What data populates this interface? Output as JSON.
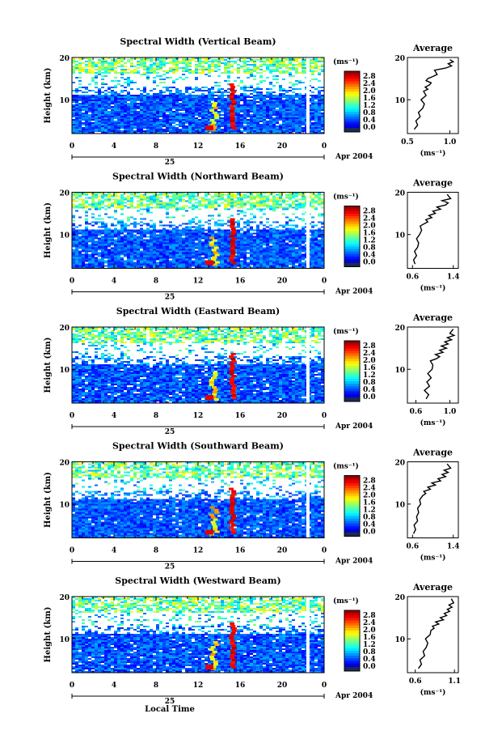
{
  "chart_data": [
    {
      "type": "heatmap",
      "title": "Spectral Width (Vertical Beam)",
      "ylabel": "Height (km)",
      "xticks": [
        "0",
        "4",
        "8",
        "12",
        "16",
        "20",
        "0"
      ],
      "yticks": [
        "10",
        "20"
      ],
      "date_label": "25",
      "month_label": "Apr 2004",
      "xlim": [
        0,
        24
      ],
      "ylim": [
        2,
        20
      ],
      "colorbar": {
        "unit": "(ms⁻¹)",
        "ticks": [
          "2.8",
          "2.4",
          "2.0",
          "1.6",
          "1.2",
          "0.8",
          "0.4",
          "0.0"
        ]
      },
      "profile": {
        "title": "Average",
        "xlabel": "(ms⁻¹)",
        "xticks": [
          "0.5",
          "1.0"
        ],
        "yticks": [
          "10",
          "20"
        ],
        "xlim": [
          0.5,
          1.1
        ],
        "x": [
          0.58,
          0.62,
          0.6,
          0.65,
          0.63,
          0.68,
          0.7,
          0.66,
          0.72,
          0.69,
          0.74,
          0.71,
          0.76,
          0.78,
          0.72,
          0.74,
          0.8,
          0.85,
          0.82,
          0.95,
          1.02,
          0.98,
          1.04,
          1.0
        ],
        "y": [
          3,
          4,
          5,
          6,
          7,
          8,
          9,
          10,
          11,
          12,
          12.5,
          13,
          13.5,
          14,
          14.5,
          15,
          15.5,
          16,
          17,
          17.5,
          18,
          18.5,
          19,
          19.5
        ]
      }
    },
    {
      "type": "heatmap",
      "title": "Spectral Width (Northward Beam)",
      "ylabel": "Height (km)",
      "xticks": [
        "0",
        "4",
        "8",
        "12",
        "16",
        "20",
        "0"
      ],
      "yticks": [
        "10",
        "20"
      ],
      "date_label": "25",
      "month_label": "Apr 2004",
      "xlim": [
        0,
        24
      ],
      "ylim": [
        2,
        20
      ],
      "colorbar": {
        "unit": "(ms⁻¹)",
        "ticks": [
          "2.8",
          "2.4",
          "2.0",
          "1.6",
          "1.2",
          "0.8",
          "0.4",
          "0.0"
        ]
      },
      "profile": {
        "title": "Average",
        "xlabel": "(ms⁻¹)",
        "xticks": [
          "0.6",
          "1.4"
        ],
        "yticks": [
          "10",
          "20"
        ],
        "xlim": [
          0.5,
          1.5
        ],
        "x": [
          0.65,
          0.62,
          0.68,
          0.64,
          0.7,
          0.72,
          0.68,
          0.74,
          0.78,
          0.75,
          0.82,
          0.9,
          0.86,
          0.98,
          0.92,
          1.05,
          1.0,
          1.15,
          1.08,
          1.25,
          1.3,
          1.18,
          1.35,
          1.28
        ],
        "y": [
          3,
          4,
          5,
          6,
          7,
          8,
          9,
          10,
          11,
          12,
          12.5,
          13,
          13.5,
          14,
          14.5,
          15,
          15.5,
          16,
          16.5,
          17,
          17.5,
          18,
          18.5,
          19.5
        ]
      }
    },
    {
      "type": "heatmap",
      "title": "Spectral Width (Eastward Beam)",
      "ylabel": "Height (km)",
      "xticks": [
        "0",
        "4",
        "8",
        "12",
        "16",
        "20",
        "0"
      ],
      "yticks": [
        "10",
        "20"
      ],
      "date_label": "25",
      "month_label": "Apr 2004",
      "xlim": [
        0,
        24
      ],
      "ylim": [
        2,
        20
      ],
      "colorbar": {
        "unit": "(ms⁻¹)",
        "ticks": [
          "2.8",
          "2.4",
          "2.0",
          "1.6",
          "1.2",
          "0.8",
          "0.4",
          "0.0"
        ]
      },
      "profile": {
        "title": "Average",
        "xlabel": "(ms⁻¹)",
        "xticks": [
          "0.6",
          "1.0"
        ],
        "yticks": [
          "10",
          "20"
        ],
        "xlim": [
          0.5,
          1.1
        ],
        "x": [
          0.72,
          0.75,
          0.7,
          0.76,
          0.73,
          0.78,
          0.74,
          0.79,
          0.8,
          0.77,
          0.84,
          0.88,
          0.83,
          0.92,
          0.88,
          0.96,
          0.9,
          0.98,
          0.94,
          1.02,
          0.97,
          1.05,
          1.0,
          1.04
        ],
        "y": [
          3,
          4,
          5,
          6,
          7,
          8,
          9,
          10,
          11,
          12,
          12.5,
          13,
          13.5,
          14,
          14.5,
          15,
          15.5,
          16,
          16.5,
          17,
          17.5,
          18,
          18.5,
          19.5
        ]
      }
    },
    {
      "type": "heatmap",
      "title": "Spectral Width (Southward Beam)",
      "ylabel": "Height (km)",
      "xticks": [
        "0",
        "4",
        "8",
        "12",
        "16",
        "20",
        "0"
      ],
      "yticks": [
        "10",
        "20"
      ],
      "date_label": "25",
      "month_label": "Apr 2004",
      "xlim": [
        0,
        24
      ],
      "ylim": [
        2,
        20
      ],
      "colorbar": {
        "unit": "(ms⁻¹)",
        "ticks": [
          "2.8",
          "2.4",
          "2.0",
          "1.6",
          "1.2",
          "0.8",
          "0.4",
          "0.0"
        ]
      },
      "profile": {
        "title": "Average",
        "xlabel": "(ms⁻¹)",
        "xticks": [
          "0.6",
          "1.4"
        ],
        "yticks": [
          "10",
          "20"
        ],
        "xlim": [
          0.5,
          1.5
        ],
        "x": [
          0.62,
          0.66,
          0.63,
          0.7,
          0.68,
          0.72,
          0.7,
          0.76,
          0.74,
          0.8,
          0.86,
          0.82,
          0.95,
          0.9,
          1.05,
          0.98,
          1.15,
          1.1,
          1.25,
          1.18,
          1.3,
          1.22,
          1.35,
          1.28
        ],
        "y": [
          3,
          4,
          5,
          6,
          7,
          8,
          9,
          10,
          11,
          12,
          12.5,
          13,
          13.5,
          14,
          14.5,
          15,
          15.5,
          16,
          16.5,
          17,
          17.5,
          18,
          18.5,
          19.5
        ]
      }
    },
    {
      "type": "heatmap",
      "title": "Spectral Width (Westward Beam)",
      "ylabel": "Height (km)",
      "xlabel": "Local Time",
      "xticks": [
        "0",
        "4",
        "8",
        "12",
        "16",
        "20",
        "0"
      ],
      "yticks": [
        "10",
        "20"
      ],
      "date_label": "25",
      "month_label": "Apr 2004",
      "xlim": [
        0,
        24
      ],
      "ylim": [
        2,
        20
      ],
      "colorbar": {
        "unit": "(ms⁻¹)",
        "ticks": [
          "2.8",
          "2.4",
          "2.0",
          "1.6",
          "1.2",
          "0.8",
          "0.4",
          "0.0"
        ]
      },
      "profile": {
        "title": "Average",
        "xlabel": "(ms⁻¹)",
        "xticks": [
          "0.6",
          "1.1"
        ],
        "yticks": [
          "10",
          "20"
        ],
        "xlim": [
          0.5,
          1.15
        ],
        "x": [
          0.64,
          0.68,
          0.66,
          0.72,
          0.7,
          0.74,
          0.76,
          0.73,
          0.79,
          0.8,
          0.84,
          0.82,
          0.9,
          0.86,
          0.96,
          0.92,
          1.0,
          0.97,
          1.04,
          1.01,
          1.07,
          1.03,
          1.09,
          1.06
        ],
        "y": [
          3,
          4,
          5,
          6,
          7,
          8,
          9,
          10,
          11,
          12,
          12.5,
          13,
          13.5,
          14,
          14.5,
          15,
          15.5,
          16,
          16.5,
          17,
          17.5,
          18,
          18.5,
          19.5
        ]
      }
    }
  ]
}
